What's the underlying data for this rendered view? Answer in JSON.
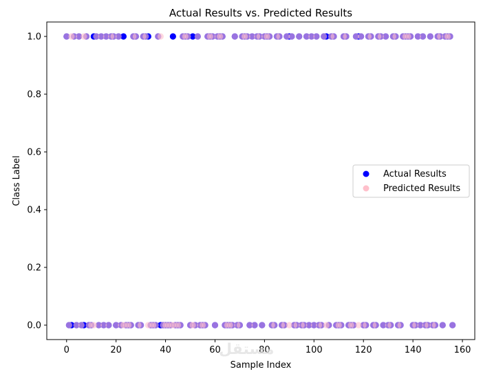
{
  "watermark": "مستقل",
  "chart_data": {
    "type": "scatter",
    "title": "Actual Results vs. Predicted Results",
    "xlabel": "Sample Index",
    "ylabel": "Class Label",
    "xlim": [
      -8,
      165
    ],
    "ylim": [
      -0.05,
      1.05
    ],
    "xticks": [
      0,
      20,
      40,
      60,
      80,
      100,
      120,
      140,
      160
    ],
    "xtick_labels": [
      "0",
      "20",
      "40",
      "60",
      "80",
      "100",
      "120",
      "140",
      "160"
    ],
    "yticks": [
      0.0,
      0.2,
      0.4,
      0.6,
      0.8,
      1.0
    ],
    "ytick_labels": [
      "0.0",
      "0.2",
      "0.4",
      "0.6",
      "0.8",
      "1.0"
    ],
    "grid": false,
    "legend_position": "center-right",
    "series": [
      {
        "name": "Actual Results",
        "color": "#0000ff",
        "x": [
          0,
          1,
          2,
          3,
          4,
          5,
          6,
          7,
          8,
          9,
          10,
          11,
          12,
          13,
          14,
          15,
          16,
          17,
          18,
          19,
          20,
          21,
          22,
          23,
          24,
          25,
          26,
          27,
          28,
          29,
          30,
          31,
          32,
          33,
          34,
          35,
          36,
          37,
          38,
          39,
          40,
          41,
          42,
          43,
          44,
          45,
          46,
          47,
          48,
          49,
          50,
          51,
          52,
          53,
          54,
          55,
          56,
          57,
          58,
          59,
          60,
          61,
          62,
          63,
          64,
          65,
          66,
          67,
          68,
          69,
          70,
          71,
          72,
          73,
          74,
          75,
          76,
          77,
          78,
          79,
          80,
          81,
          82,
          83,
          84,
          85,
          86,
          87,
          88,
          89,
          90,
          91,
          92,
          93,
          94,
          95,
          96,
          97,
          98,
          99,
          100,
          101,
          102,
          103,
          104,
          105,
          106,
          107,
          108,
          109,
          110,
          111,
          112,
          113,
          114,
          115,
          116,
          117,
          118,
          119,
          120,
          121,
          122,
          123,
          124,
          125,
          126,
          127,
          128,
          129,
          130,
          131,
          132,
          133,
          134,
          135,
          136,
          137,
          138,
          139,
          140,
          141,
          142,
          143,
          144,
          145,
          146,
          147,
          148,
          149,
          150,
          151,
          152,
          153,
          154,
          155,
          156
        ],
        "y": [
          1,
          0,
          0,
          1,
          0,
          1,
          0,
          0,
          1,
          0,
          0,
          1,
          1,
          0,
          1,
          0,
          1,
          0,
          1,
          1,
          0,
          1,
          0,
          1,
          0,
          0,
          0,
          1,
          1,
          0,
          0,
          1,
          1,
          1,
          0,
          0,
          0,
          1,
          0,
          0,
          0,
          0,
          0,
          1,
          0,
          0,
          0,
          1,
          1,
          1,
          0,
          1,
          0,
          1,
          0,
          0,
          0,
          1,
          1,
          1,
          0,
          1,
          1,
          1,
          0,
          0,
          0,
          0,
          1,
          0,
          0,
          1,
          1,
          1,
          0,
          1,
          0,
          1,
          1,
          0,
          1,
          1,
          1,
          0,
          0,
          1,
          1,
          0,
          0,
          1,
          1,
          1,
          0,
          0,
          1,
          0,
          0,
          1,
          0,
          1,
          0,
          1,
          0,
          0,
          1,
          1,
          0,
          1,
          1,
          0,
          0,
          0,
          1,
          1,
          0,
          0,
          0,
          1,
          1,
          1,
          0,
          0,
          1,
          1,
          0,
          0,
          1,
          1,
          0,
          1,
          0,
          0,
          1,
          1,
          0,
          0,
          1,
          1,
          1,
          1,
          0,
          0,
          1,
          0,
          1,
          0,
          0,
          1,
          0,
          0,
          1,
          1,
          0,
          1,
          1,
          1,
          0
        ]
      },
      {
        "name": "Predicted Results",
        "color": "#ffc0cb",
        "x": [
          0,
          1,
          2,
          3,
          4,
          5,
          6,
          7,
          8,
          9,
          10,
          11,
          12,
          13,
          14,
          15,
          16,
          17,
          18,
          19,
          20,
          21,
          22,
          23,
          24,
          25,
          26,
          27,
          28,
          29,
          30,
          31,
          32,
          33,
          34,
          35,
          36,
          37,
          38,
          39,
          40,
          41,
          42,
          43,
          44,
          45,
          46,
          47,
          48,
          49,
          50,
          51,
          52,
          53,
          54,
          55,
          56,
          57,
          58,
          59,
          60,
          61,
          62,
          63,
          64,
          65,
          66,
          67,
          68,
          69,
          70,
          71,
          72,
          73,
          74,
          75,
          76,
          77,
          78,
          79,
          80,
          81,
          82,
          83,
          84,
          85,
          86,
          87,
          88,
          89,
          90,
          91,
          92,
          93,
          94,
          95,
          96,
          97,
          98,
          99,
          100,
          101,
          102,
          103,
          104,
          105,
          106,
          107,
          108,
          109,
          110,
          111,
          112,
          113,
          114,
          115,
          116,
          117,
          118,
          119,
          120,
          121,
          122,
          123,
          124,
          125,
          126,
          127,
          128,
          129,
          130,
          131,
          132,
          133,
          134,
          135,
          136,
          137,
          138,
          139,
          140,
          141,
          142,
          143,
          144,
          145,
          146,
          147,
          148,
          149,
          150,
          151,
          152,
          153,
          154,
          155,
          156
        ],
        "y": [
          1,
          0,
          1,
          1,
          0,
          1,
          0,
          1,
          1,
          0,
          0,
          0,
          1,
          0,
          1,
          0,
          1,
          0,
          1,
          1,
          0,
          1,
          0,
          0,
          0,
          0,
          0,
          1,
          1,
          0,
          0,
          1,
          1,
          0,
          0,
          0,
          0,
          1,
          1,
          0,
          0,
          0,
          0,
          0,
          0,
          0,
          0,
          1,
          1,
          1,
          0,
          0,
          0,
          1,
          0,
          0,
          0,
          1,
          1,
          1,
          0,
          1,
          1,
          1,
          0,
          0,
          0,
          0,
          1,
          0,
          0,
          1,
          1,
          1,
          0,
          1,
          0,
          1,
          1,
          0,
          1,
          1,
          1,
          0,
          0,
          1,
          1,
          0,
          0,
          1,
          0,
          1,
          0,
          0,
          1,
          0,
          0,
          1,
          0,
          1,
          0,
          1,
          0,
          0,
          1,
          0,
          0,
          1,
          1,
          0,
          0,
          0,
          1,
          1,
          0,
          0,
          0,
          1,
          0,
          1,
          0,
          0,
          1,
          1,
          0,
          0,
          1,
          1,
          0,
          1,
          0,
          0,
          1,
          1,
          0,
          0,
          1,
          1,
          1,
          1,
          0,
          0,
          1,
          0,
          1,
          0,
          0,
          1,
          0,
          0,
          1,
          1,
          0,
          1,
          1,
          1,
          0
        ]
      }
    ]
  }
}
